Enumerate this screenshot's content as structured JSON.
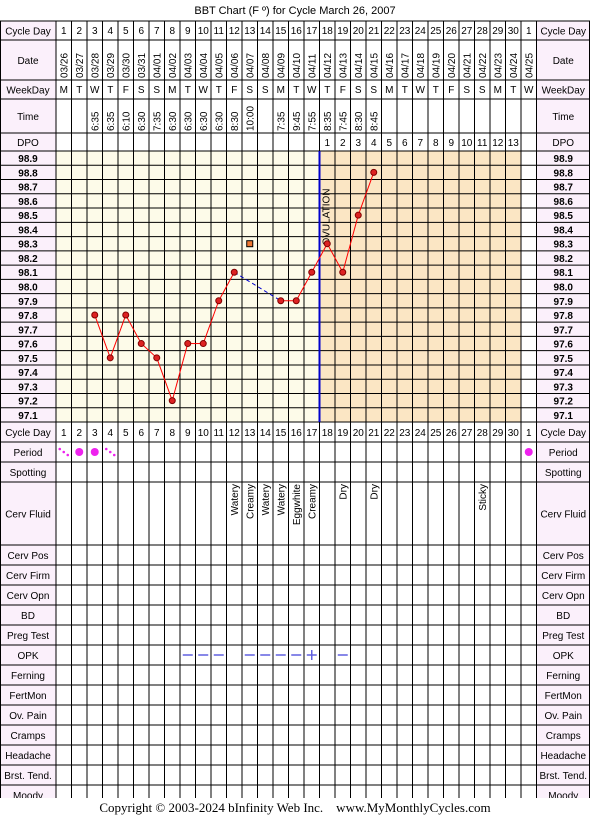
{
  "title": "BBT Chart (F º) for Cycle March 26, 2007",
  "row_labels": {
    "cycle_day": "Cycle Day",
    "date": "Date",
    "weekday": "WeekDay",
    "time": "Time",
    "dpo": "DPO"
  },
  "lower_rows": [
    "Period",
    "Spotting",
    "Cerv Fluid",
    "Cerv Pos",
    "Cerv Firm",
    "Cerv Opn",
    "BD",
    "Preg Test",
    "OPK",
    "Ferning",
    "FertMon",
    "Ov. Pain",
    "Cramps",
    "Headache",
    "Brst. Tend.",
    "Moody"
  ],
  "cycle_days": [
    "1",
    "2",
    "3",
    "4",
    "5",
    "6",
    "7",
    "8",
    "9",
    "10",
    "11",
    "12",
    "13",
    "14",
    "15",
    "16",
    "17",
    "18",
    "19",
    "20",
    "21",
    "22",
    "23",
    "24",
    "25",
    "26",
    "27",
    "28",
    "29",
    "30",
    "1"
  ],
  "dates": [
    "03/26",
    "03/27",
    "03/28",
    "03/29",
    "03/30",
    "03/31",
    "04/01",
    "04/02",
    "04/03",
    "04/04",
    "04/05",
    "04/06",
    "04/07",
    "04/08",
    "04/09",
    "04/10",
    "04/11",
    "04/12",
    "04/13",
    "04/14",
    "04/15",
    "04/16",
    "04/17",
    "04/18",
    "04/19",
    "04/20",
    "04/21",
    "04/22",
    "04/23",
    "04/24",
    "04/25"
  ],
  "weekdays": [
    "M",
    "T",
    "W",
    "T",
    "F",
    "S",
    "S",
    "M",
    "T",
    "W",
    "T",
    "F",
    "S",
    "S",
    "M",
    "T",
    "W",
    "T",
    "F",
    "S",
    "S",
    "M",
    "T",
    "W",
    "T",
    "F",
    "S",
    "S",
    "M",
    "T",
    "W"
  ],
  "times": [
    "",
    "",
    "6:35",
    "6:35",
    "6:10",
    "6:30",
    "7:35",
    "6:30",
    "6:30",
    "6:30",
    "6:30",
    "8:30",
    "10:00",
    "",
    "7:35",
    "9:45",
    "7:55",
    "8:35",
    "7:45",
    "8:30",
    "8:45",
    "",
    "",
    "",
    "",
    "",
    "",
    "",
    "",
    "",
    ""
  ],
  "dpo": [
    "",
    "",
    "",
    "",
    "",
    "",
    "",
    "",
    "",
    "",
    "",
    "",
    "",
    "",
    "",
    "",
    "",
    "1",
    "2",
    "3",
    "4",
    "5",
    "6",
    "7",
    "8",
    "9",
    "10",
    "11",
    "12",
    "13",
    ""
  ],
  "ovulation_label": "OVULATION",
  "ovulation_day_index": 16,
  "period": [
    "spotting-dots",
    "heavy",
    "heavy",
    "spotting-dots",
    "",
    "",
    "",
    "",
    "",
    "",
    "",
    "",
    "",
    "",
    "",
    "",
    "",
    "",
    "",
    "",
    "",
    "",
    "",
    "",
    "",
    "",
    "",
    "",
    "",
    "",
    "heavy"
  ],
  "cervical_fluid": [
    "",
    "",
    "",
    "",
    "",
    "",
    "",
    "",
    "",
    "",
    "",
    "Watery",
    "Creamy",
    "Watery",
    "Watery",
    "Eggwhite",
    "Creamy",
    "",
    "Dry",
    "",
    "Dry",
    "",
    "",
    "",
    "",
    "",
    "",
    "Sticky",
    "",
    "",
    ""
  ],
  "opk": [
    "",
    "",
    "",
    "",
    "",
    "",
    "",
    "",
    "neg",
    "neg",
    "neg",
    "",
    "neg",
    "neg",
    "neg",
    "neg",
    "pos",
    "",
    "neg",
    "",
    "",
    "",
    "",
    "",
    "",
    "",
    "",
    "",
    "",
    "",
    ""
  ],
  "colors": {
    "prefollicular_bg": "#fdfbe9",
    "luteal_bg": "#fbe6c4",
    "label_bg": "#fbf0fb",
    "line": "#ff0000",
    "point": "#dd2222",
    "ovulation_line": "#0000cc",
    "period": "#ee22ee",
    "opk": "#6060e0",
    "discarded_point": "#ee7733"
  },
  "footer": "Copyright © 2003-2024 bInfinity Web Inc.    www.MyMonthlyCycles.com",
  "chart_data": {
    "type": "line",
    "title": "BBT Chart (F º) for Cycle March 26, 2007",
    "x": [
      3,
      4,
      5,
      6,
      7,
      8,
      9,
      10,
      11,
      12,
      13,
      14,
      15,
      16,
      17,
      18,
      19,
      20,
      21
    ],
    "y": [
      97.8,
      97.5,
      97.8,
      97.6,
      97.5,
      97.2,
      97.6,
      97.6,
      97.9,
      98.1,
      null,
      null,
      97.9,
      97.9,
      98.1,
      98.3,
      98.1,
      98.5,
      98.8
    ],
    "discarded": [
      {
        "x": 13,
        "y": 98.3
      }
    ],
    "ylim": [
      97.1,
      98.9
    ],
    "yticks": [
      98.9,
      98.8,
      98.7,
      98.6,
      98.5,
      98.4,
      98.3,
      98.2,
      98.1,
      98.0,
      97.9,
      97.8,
      97.7,
      97.6,
      97.5,
      97.4,
      97.3,
      97.2,
      97.1
    ],
    "grid": true,
    "ovulation_day": 17
  }
}
